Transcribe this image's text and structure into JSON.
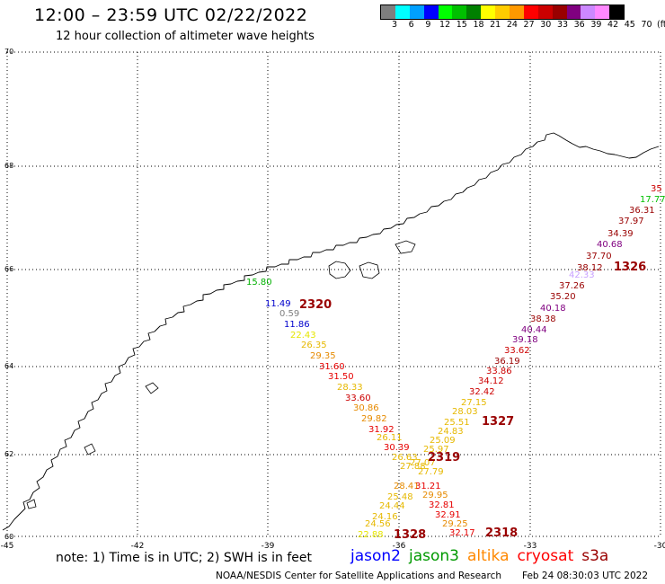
{
  "header": {
    "title": "12:00 – 23:59 UTC 02/22/2022",
    "subtitle": "12 hour collection of altimeter wave heights"
  },
  "legend": {
    "labels": [
      "3",
      "6",
      "9",
      "12",
      "15",
      "18",
      "21",
      "24",
      "27",
      "30",
      "33",
      "36",
      "39",
      "42",
      "45",
      "70",
      "(ft)"
    ],
    "colors": [
      "#7f7f7f",
      "#00ffff",
      "#00a0ff",
      "#0000ff",
      "#00ff00",
      "#00c000",
      "#008000",
      "#ffff00",
      "#ffcc00",
      "#ff9900",
      "#ff0000",
      "#cc0000",
      "#990000",
      "#800080",
      "#cc88ff",
      "#ff88ff",
      "#000000"
    ]
  },
  "axes": {
    "lat_labels": [
      "70",
      "68",
      "66",
      "64",
      "62",
      "60"
    ],
    "lon_labels": [
      "-45",
      "-42",
      "-39",
      "-36",
      "-33",
      "-30"
    ]
  },
  "orbits": [
    {
      "label": "2320",
      "color": "#990000"
    },
    {
      "label": "2319",
      "color": "#990000"
    },
    {
      "label": "1328",
      "color": "#990000"
    },
    {
      "label": "1327",
      "color": "#990000"
    },
    {
      "label": "2318",
      "color": "#990000"
    },
    {
      "label": "1326",
      "color": "#990000"
    }
  ],
  "observations": [
    {
      "value": "15.80",
      "color": "#00b000"
    },
    {
      "value": "11.49",
      "color": "#0000cc"
    },
    {
      "value": "0.59",
      "color": "#7f7f7f"
    },
    {
      "value": "11.86",
      "color": "#0000cc"
    },
    {
      "value": "22.43",
      "color": "#e6e600"
    },
    {
      "value": "26.35",
      "color": "#e6b800"
    },
    {
      "value": "29.35",
      "color": "#e68a00"
    },
    {
      "value": "31.60",
      "color": "#e60000"
    },
    {
      "value": "31.50",
      "color": "#e60000"
    },
    {
      "value": "28.33",
      "color": "#e6b800"
    },
    {
      "value": "33.60",
      "color": "#cc0000"
    },
    {
      "value": "30.86",
      "color": "#e68a00"
    },
    {
      "value": "29.82",
      "color": "#e68a00"
    },
    {
      "value": "31.92",
      "color": "#e60000"
    },
    {
      "value": "26.11",
      "color": "#e6b800"
    },
    {
      "value": "30.39",
      "color": "#e60000"
    },
    {
      "value": "26.63",
      "color": "#e6b800"
    },
    {
      "value": "27.88",
      "color": "#e6b800"
    },
    {
      "value": "27.07",
      "color": "#e6b800"
    },
    {
      "value": "27.79",
      "color": "#e6b800"
    },
    {
      "value": "28.41",
      "color": "#e68a00"
    },
    {
      "value": "31.21",
      "color": "#e60000"
    },
    {
      "value": "25.48",
      "color": "#e6b800"
    },
    {
      "value": "29.95",
      "color": "#e68a00"
    },
    {
      "value": "24.44",
      "color": "#e6b800"
    },
    {
      "value": "32.81",
      "color": "#e60000"
    },
    {
      "value": "24.16",
      "color": "#e6b800"
    },
    {
      "value": "32.91",
      "color": "#e60000"
    },
    {
      "value": "24.56",
      "color": "#e6b800"
    },
    {
      "value": "29.25",
      "color": "#e68a00"
    },
    {
      "value": "22.88",
      "color": "#e6e600"
    },
    {
      "value": "32.17",
      "color": "#e60000"
    },
    {
      "value": "35",
      "color": "#cc0000"
    },
    {
      "value": "17.77",
      "color": "#00c000"
    },
    {
      "value": "36.31",
      "color": "#990000"
    },
    {
      "value": "37.97",
      "color": "#990000"
    },
    {
      "value": "34.39",
      "color": "#990000"
    },
    {
      "value": "40.68",
      "color": "#800080"
    },
    {
      "value": "37.70",
      "color": "#990000"
    },
    {
      "value": "38.12",
      "color": "#990000"
    },
    {
      "value": "42.33",
      "color": "#c8a0ff"
    },
    {
      "value": "37.26",
      "color": "#990000"
    },
    {
      "value": "35.20",
      "color": "#990000"
    },
    {
      "value": "40.18",
      "color": "#800080"
    },
    {
      "value": "38.38",
      "color": "#990000"
    },
    {
      "value": "40.44",
      "color": "#800080"
    },
    {
      "value": "39.18",
      "color": "#800080"
    },
    {
      "value": "33.62",
      "color": "#cc0000"
    },
    {
      "value": "36.19",
      "color": "#990000"
    },
    {
      "value": "33.86",
      "color": "#cc0000"
    },
    {
      "value": "34.12",
      "color": "#cc0000"
    },
    {
      "value": "32.42",
      "color": "#cc0000"
    },
    {
      "value": "27.15",
      "color": "#e6b800"
    },
    {
      "value": "28.03",
      "color": "#e6b800"
    },
    {
      "value": "25.51",
      "color": "#e6b800"
    },
    {
      "value": "24.83",
      "color": "#e6b800"
    },
    {
      "value": "25.09",
      "color": "#e6b800"
    },
    {
      "value": "25.97",
      "color": "#e6b800"
    }
  ],
  "footer": {
    "note": "note:  1) Time is in UTC;  2) SWH is in feet",
    "satellites": [
      {
        "name": "jason2",
        "color": "#0000ff"
      },
      {
        "name": "jason3",
        "color": "#009900"
      },
      {
        "name": "altika",
        "color": "#ff8800"
      },
      {
        "name": "cryosat",
        "color": "#ff0000"
      },
      {
        "name": "s3a",
        "color": "#990000"
      }
    ],
    "credit": "NOAA/NESDIS Center for Satellite Applications and Research",
    "timestamp": "Feb 24 08:30:03 UTC 2022"
  }
}
